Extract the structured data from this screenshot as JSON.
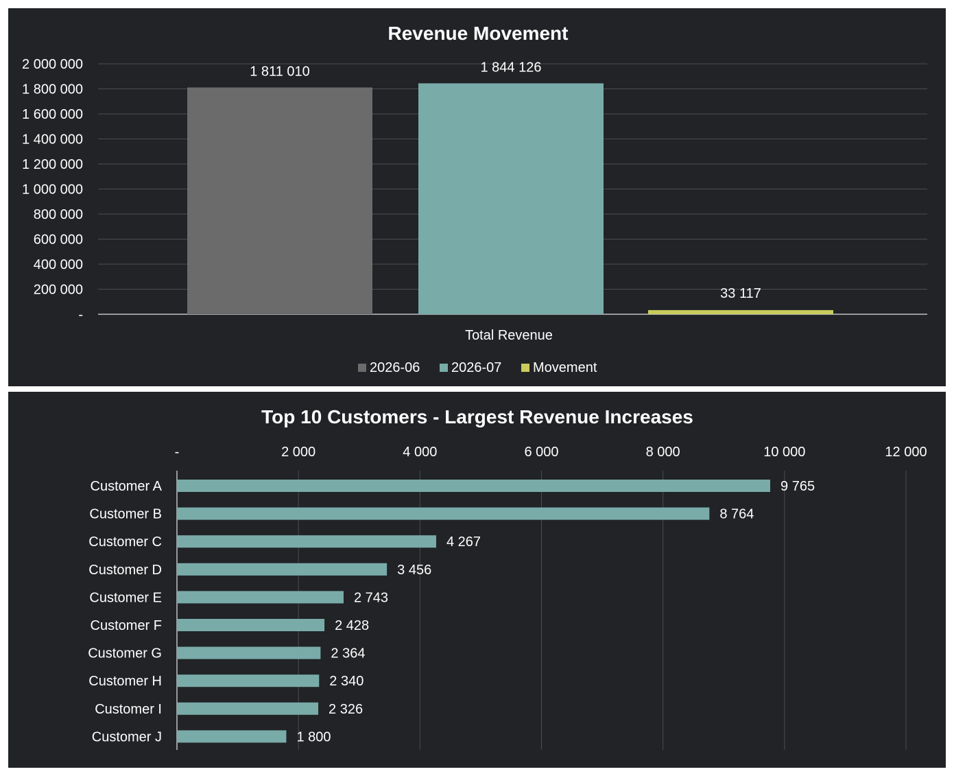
{
  "colors": {
    "panel_bg": "#212326",
    "series_2026_06": "#6b6b6b",
    "series_2026_07": "#79aba9",
    "series_movement": "#c9cc5c",
    "grid": "#4a4d52",
    "text": "#ffffff"
  },
  "chart_data": [
    {
      "type": "bar",
      "title": "Revenue Movement",
      "categories": [
        "Total Revenue"
      ],
      "series": [
        {
          "name": "2026-06",
          "values": [
            1811010
          ],
          "label": "1 811 010"
        },
        {
          "name": "2026-07",
          "values": [
            1844126
          ],
          "label": "1 844 126"
        },
        {
          "name": "Movement",
          "values": [
            33117
          ],
          "label": "33 117"
        }
      ],
      "y_ticks": [
        {
          "value": 0,
          "label": "-"
        },
        {
          "value": 200000,
          "label": "200 000"
        },
        {
          "value": 400000,
          "label": "400 000"
        },
        {
          "value": 600000,
          "label": "600 000"
        },
        {
          "value": 800000,
          "label": "800 000"
        },
        {
          "value": 1000000,
          "label": "1 000 000"
        },
        {
          "value": 1200000,
          "label": "1 200 000"
        },
        {
          "value": 1400000,
          "label": "1 400 000"
        },
        {
          "value": 1600000,
          "label": "1 600 000"
        },
        {
          "value": 1800000,
          "label": "1 800 000"
        },
        {
          "value": 2000000,
          "label": "2 000 000"
        }
      ],
      "ylim": [
        0,
        2000000
      ],
      "grid": true,
      "legend": "bottom"
    },
    {
      "type": "bar",
      "orientation": "horizontal",
      "title": "Top 10 Customers - Largest Revenue Increases",
      "categories": [
        "Customer A",
        "Customer B",
        "Customer C",
        "Customer D",
        "Customer E",
        "Customer F",
        "Customer G",
        "Customer H",
        "Customer I",
        "Customer J"
      ],
      "values": [
        9765,
        8764,
        4267,
        3456,
        2743,
        2428,
        2364,
        2340,
        2326,
        1800
      ],
      "value_labels": [
        "9 765",
        "8 764",
        "4 267",
        "3 456",
        "2 743",
        "2 428",
        "2 364",
        "2 340",
        "2 326",
        "1 800"
      ],
      "x_ticks": [
        {
          "value": 0,
          "label": "-"
        },
        {
          "value": 2000,
          "label": "2 000"
        },
        {
          "value": 4000,
          "label": "4 000"
        },
        {
          "value": 6000,
          "label": "6 000"
        },
        {
          "value": 8000,
          "label": "8 000"
        },
        {
          "value": 10000,
          "label": "10 000"
        },
        {
          "value": 12000,
          "label": "12 000"
        }
      ],
      "xlim": [
        0,
        12000
      ],
      "grid": true,
      "x_axis_position": "top"
    }
  ]
}
